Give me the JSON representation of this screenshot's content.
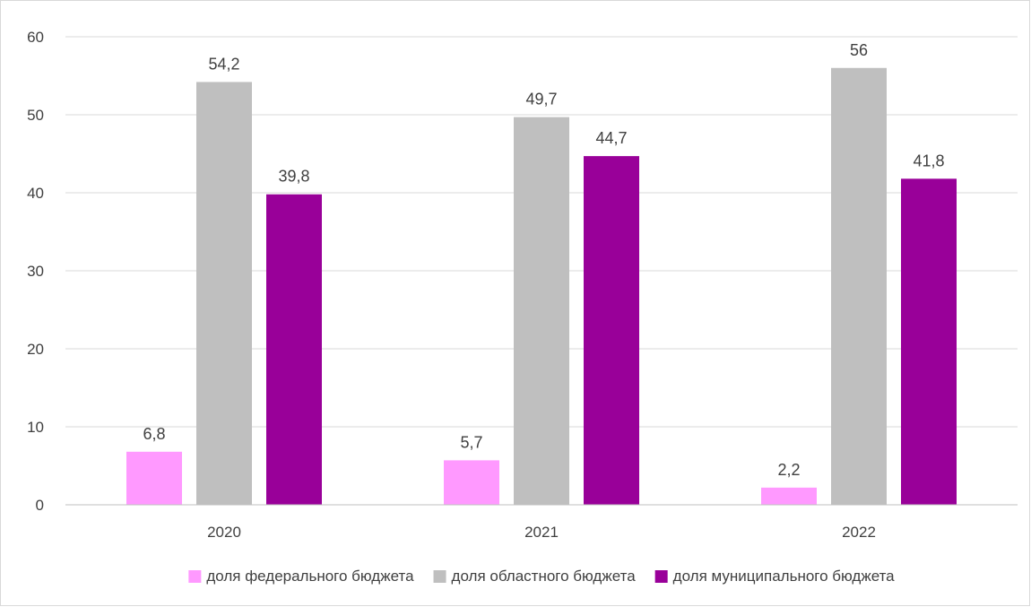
{
  "chart_data": {
    "type": "bar",
    "title": "",
    "xlabel": "",
    "ylabel": "",
    "categories": [
      "2020",
      "2021",
      "2022"
    ],
    "series": [
      {
        "name": "доля федерального бюджета",
        "color": "#ff99ff",
        "values": [
          6.8,
          5.7,
          2.2
        ],
        "labels": [
          "6,8",
          "5,7",
          "2,2"
        ]
      },
      {
        "name": "доля областного бюджета",
        "color": "#bfbfbf",
        "values": [
          54.2,
          49.7,
          56
        ],
        "labels": [
          "54,2",
          "49,7",
          "56"
        ]
      },
      {
        "name": "доля муниципального бюджета",
        "color": "#990099",
        "values": [
          39.8,
          44.7,
          41.8
        ],
        "labels": [
          "39,8",
          "44,7",
          "41,8"
        ]
      }
    ],
    "ylim": [
      0,
      60
    ],
    "yticks": [
      0,
      10,
      20,
      30,
      40,
      50,
      60
    ],
    "grid": true,
    "legend_position": "bottom"
  }
}
